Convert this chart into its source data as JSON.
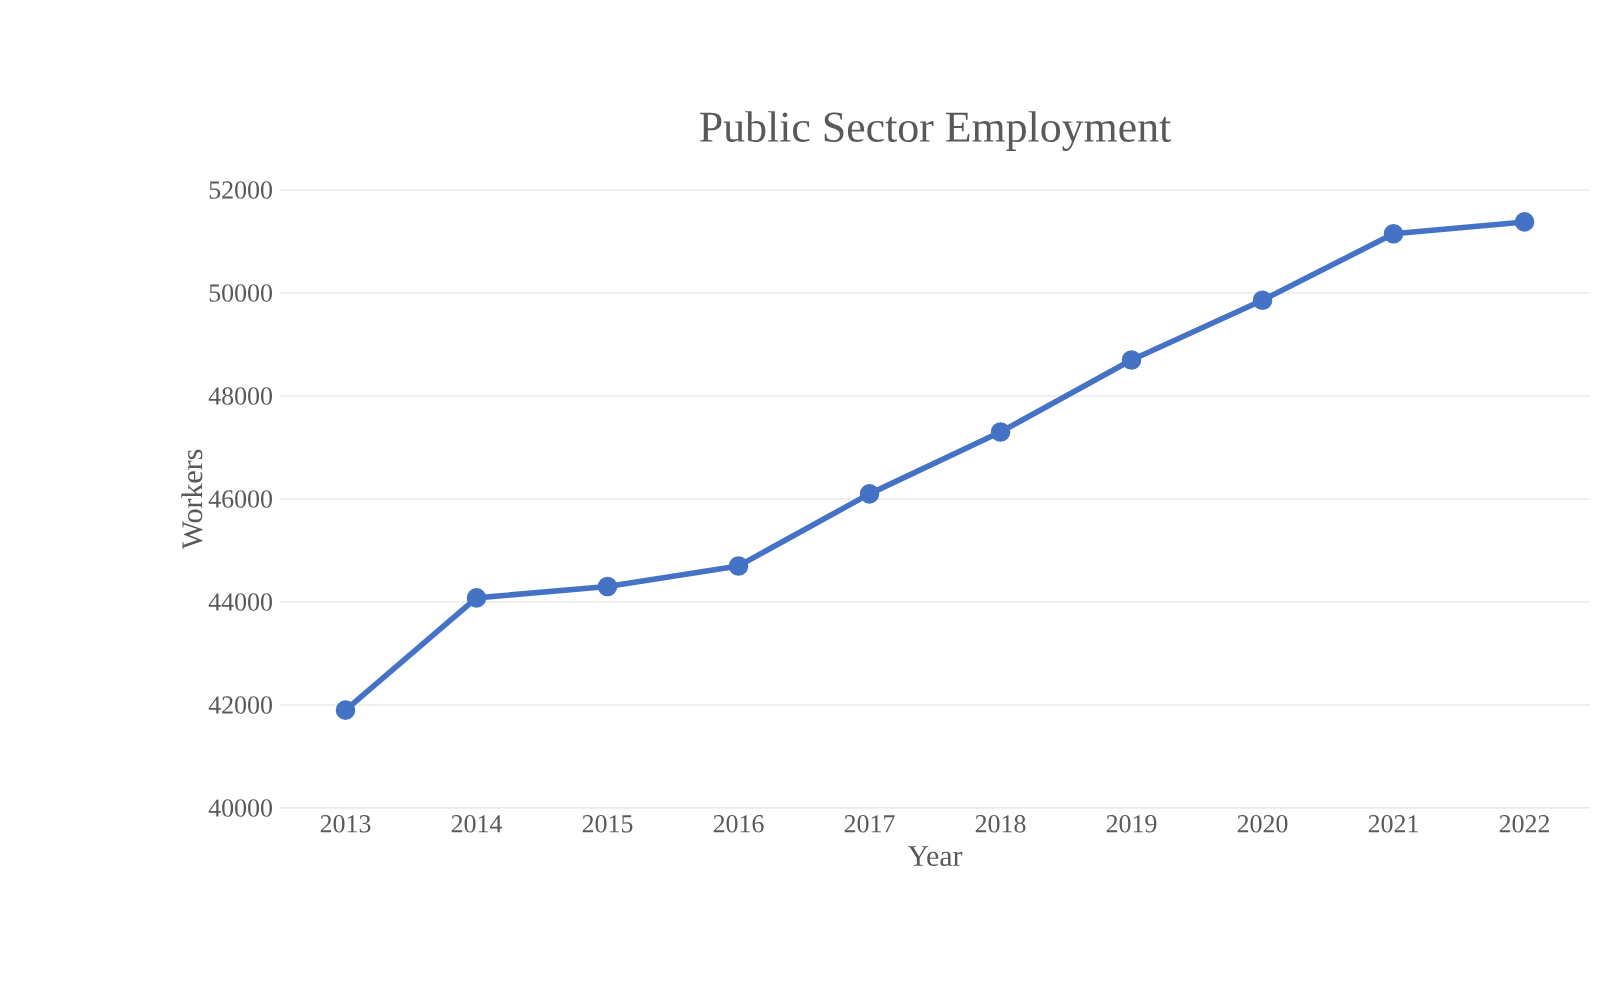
{
  "chart_data": {
    "type": "line",
    "title": "Public Sector Employment",
    "xlabel": "Year",
    "ylabel": "Workers",
    "categories": [
      "2013",
      "2014",
      "2015",
      "2016",
      "2017",
      "2018",
      "2019",
      "2020",
      "2021",
      "2022"
    ],
    "series": [
      {
        "color": "#4472c4",
        "values": [
          41900,
          44080,
          44300,
          44700,
          46100,
          47300,
          48700,
          49860,
          51150,
          51380
        ]
      }
    ],
    "ylim": [
      40000,
      52000
    ],
    "yticks": [
      40000,
      42000,
      44000,
      46000,
      48000,
      50000,
      52000
    ],
    "grid": "y",
    "marker": "circle",
    "line_style": "solid"
  }
}
